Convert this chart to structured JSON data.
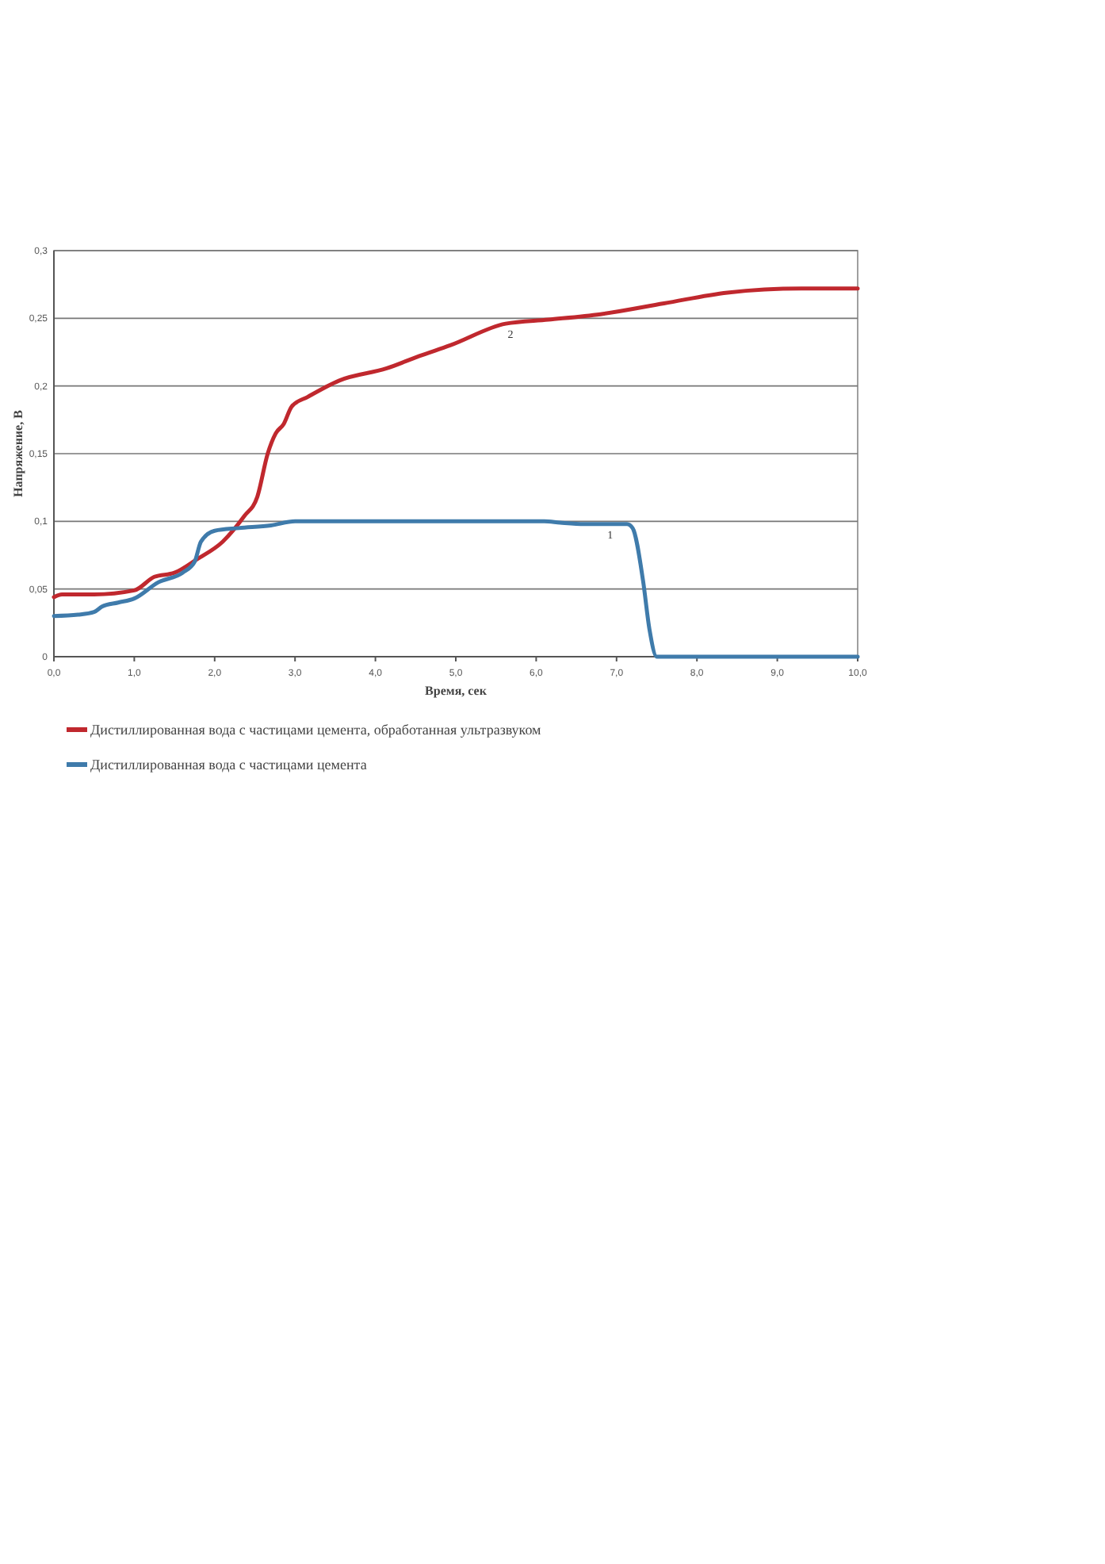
{
  "chart_data": {
    "type": "line",
    "xlabel": "Время, сек",
    "ylabel": "Напряжение, В",
    "xlim": [
      0,
      10
    ],
    "ylim": [
      0,
      0.3
    ],
    "xticks": [
      {
        "value": 0,
        "label": "0,0"
      },
      {
        "value": 1,
        "label": "1,0"
      },
      {
        "value": 2,
        "label": "2,0"
      },
      {
        "value": 3,
        "label": "3,0"
      },
      {
        "value": 4,
        "label": "4,0"
      },
      {
        "value": 5,
        "label": "5,0"
      },
      {
        "value": 6,
        "label": "6,0"
      },
      {
        "value": 7,
        "label": "7,0"
      },
      {
        "value": 8,
        "label": "8,0"
      },
      {
        "value": 9,
        "label": "9,0"
      },
      {
        "value": 10,
        "label": "10,0"
      }
    ],
    "yticks": [
      0,
      {
        "value": 0.05,
        "label": "0,05"
      },
      {
        "value": 0.1,
        "label": "0,1"
      },
      {
        "value": 0.15,
        "label": "0,15"
      },
      {
        "value": 0.2,
        "label": "0,2"
      },
      {
        "value": 0.25,
        "label": "0,25"
      },
      {
        "value": 0.3,
        "label": "0,3"
      }
    ],
    "grid": "y",
    "legend": "bottom",
    "marker": "none",
    "line_style": "solid",
    "annotations": [
      {
        "text": "2",
        "x": 5.68,
        "y": 0.246
      },
      {
        "text": "1",
        "x": 6.92,
        "y": 0.098
      }
    ],
    "series": [
      {
        "name": "Дистиллированная вода с частицами цемента, обработанная ультразвуком",
        "color": "#c0282e",
        "x": [
          0,
          0.1,
          0.5,
          1.0,
          1.25,
          1.5,
          1.78,
          2.1,
          2.37,
          2.53,
          2.66,
          2.76,
          2.86,
          2.96,
          3.16,
          3.55,
          4.14,
          4.54,
          4.93,
          5.62,
          6.15,
          6.8,
          7.59,
          8.38,
          9.3,
          10
        ],
        "values": [
          0.044,
          0.046,
          0.046,
          0.049,
          0.059,
          0.062,
          0.072,
          0.085,
          0.104,
          0.118,
          0.15,
          0.165,
          0.172,
          0.185,
          0.192,
          0.204,
          0.213,
          0.222,
          0.23,
          0.246,
          0.249,
          0.253,
          0.261,
          0.269,
          0.272,
          0.272
        ]
      },
      {
        "name": "Дистиллированная вода с частицами цемента",
        "color": "#3f7bab",
        "x": [
          0,
          0.3,
          0.5,
          0.6,
          0.8,
          1.0,
          1.3,
          1.6,
          1.75,
          1.83,
          2.0,
          2.3,
          2.7,
          3.0,
          6.1,
          6.3,
          6.6,
          7.13,
          7.2,
          7.33,
          7.41,
          7.5,
          10
        ],
        "values": [
          0.03,
          0.031,
          0.033,
          0.037,
          0.04,
          0.043,
          0.055,
          0.062,
          0.07,
          0.085,
          0.093,
          0.095,
          0.097,
          0.1,
          0.1,
          0.099,
          0.098,
          0.098,
          0.095,
          0.056,
          0.02,
          0,
          0
        ]
      }
    ]
  }
}
